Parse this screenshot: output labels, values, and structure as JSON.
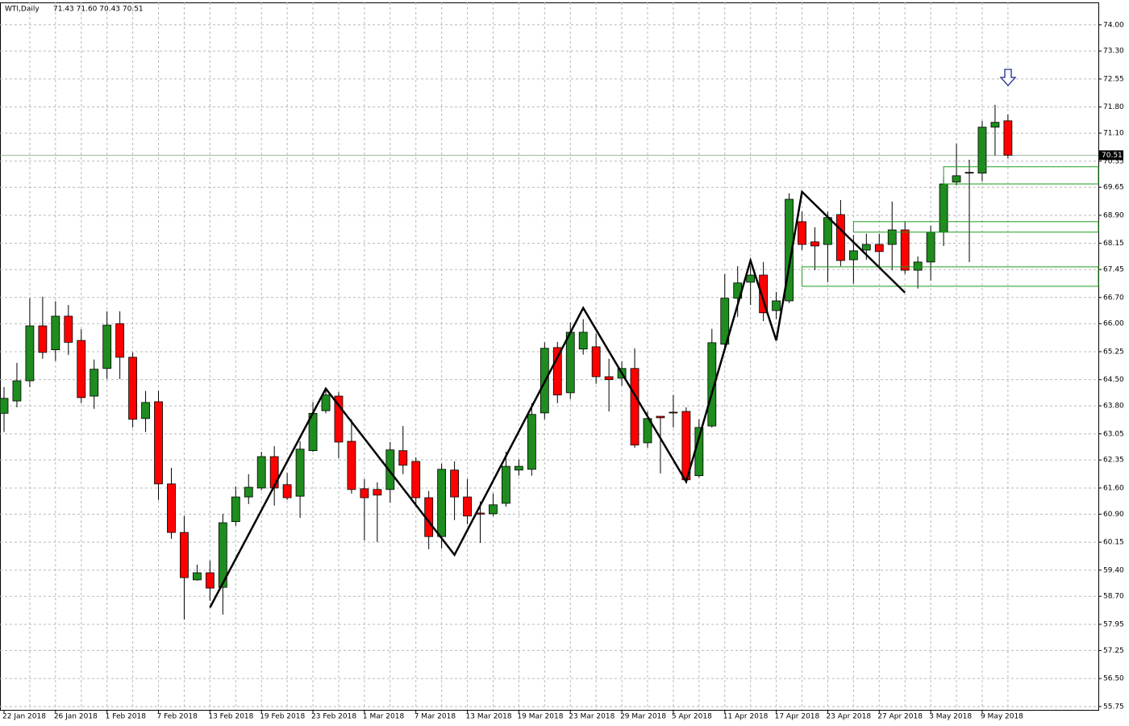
{
  "chart_data": {
    "type": "candlestick",
    "title": "WTI,Daily",
    "ohlc_label": "71.43 71.60 70.43 70.51",
    "categories": [
      "22 Jan 2018",
      null,
      null,
      null,
      "26 Jan 2018",
      null,
      null,
      null,
      "1 Feb 2018",
      null,
      null,
      null,
      "7 Feb 2018",
      null,
      null,
      null,
      "13 Feb 2018",
      null,
      null,
      null,
      "19 Feb 2018",
      null,
      null,
      null,
      "23 Feb 2018",
      null,
      null,
      null,
      "1 Mar 2018",
      null,
      null,
      null,
      "7 Mar 2018",
      null,
      null,
      null,
      "13 Mar 2018",
      null,
      null,
      null,
      "19 Mar 2018",
      null,
      null,
      null,
      "23 Mar 2018",
      null,
      null,
      null,
      "29 Mar 2018",
      null,
      null,
      null,
      "5 Apr 2018",
      null,
      null,
      null,
      "11 Apr 2018",
      null,
      null,
      null,
      "17 Apr 2018",
      null,
      null,
      null,
      "23 Apr 2018",
      null,
      null,
      null,
      "27 Apr 2018",
      null,
      null,
      null,
      "3 May 2018",
      null,
      null,
      null,
      "9 May 2018",
      null,
      null
    ],
    "open": [
      63.6,
      63.93,
      64.47,
      65.94,
      65.3,
      66.2,
      65.55,
      64.06,
      64.8,
      66.0,
      65.1,
      63.46,
      63.91,
      61.71,
      60.41,
      59.14,
      59.33,
      58.94,
      60.7,
      61.36,
      61.6,
      62.44,
      61.69,
      61.38,
      62.6,
      63.67,
      64.06,
      62.85,
      61.58,
      61.56,
      61.56,
      62.6,
      62.31,
      61.34,
      60.3,
      62.08,
      61.36,
      60.93,
      60.91,
      61.19,
      62.08,
      62.1,
      63.61,
      65.36,
      64.15,
      65.32,
      65.38,
      64.58,
      64.54,
      64.8,
      62.81,
      63.52,
      63.63,
      63.65,
      61.93,
      63.26,
      65.45,
      66.68,
      67.11,
      67.3,
      66.35,
      66.61,
      68.73,
      68.19,
      68.12,
      68.92,
      67.71,
      67.97,
      68.12,
      68.12,
      68.51,
      67.43,
      67.65,
      68.45,
      69.79,
      70.05,
      70.03,
      71.26,
      71.43
    ],
    "high": [
      64.3,
      64.95,
      66.68,
      66.72,
      66.6,
      66.5,
      65.85,
      65.04,
      66.33,
      66.33,
      65.23,
      64.2,
      64.2,
      62.14,
      60.85,
      59.55,
      59.66,
      60.91,
      61.64,
      61.97,
      62.57,
      62.72,
      62.0,
      62.85,
      63.9,
      64.28,
      64.17,
      63.44,
      61.84,
      61.75,
      62.83,
      63.26,
      62.42,
      61.52,
      62.25,
      62.31,
      61.84,
      61.24,
      61.45,
      62.57,
      62.36,
      63.87,
      65.5,
      65.51,
      66.03,
      66.12,
      65.73,
      65.06,
      64.99,
      65.34,
      63.65,
      63.52,
      64.09,
      63.76,
      63.44,
      65.86,
      67.33,
      67.54,
      67.54,
      67.65,
      66.85,
      69.49,
      69.0,
      68.58,
      69.0,
      69.31,
      68.37,
      68.41,
      68.41,
      69.27,
      68.73,
      67.8,
      68.62,
      69.92,
      70.82,
      70.39,
      71.43,
      71.86,
      71.6
    ],
    "low": [
      63.1,
      63.76,
      64.3,
      65.06,
      65.0,
      65.16,
      63.87,
      63.72,
      64.52,
      64.52,
      63.22,
      63.1,
      61.28,
      60.24,
      58.08,
      59.12,
      58.58,
      58.21,
      60.59,
      61.17,
      61.54,
      61.13,
      61.28,
      60.8,
      62.57,
      63.6,
      62.4,
      61.45,
      60.2,
      60.15,
      61.21,
      61.97,
      61.1,
      59.96,
      59.98,
      60.74,
      60.63,
      60.13,
      60.85,
      61.1,
      61.93,
      61.93,
      63.44,
      63.87,
      63.98,
      65.17,
      64.39,
      63.65,
      64.34,
      62.68,
      62.68,
      61.99,
      63.22,
      61.75,
      61.88,
      63.22,
      65.38,
      66.18,
      66.5,
      66.07,
      66.12,
      66.55,
      67.97,
      67.43,
      67.11,
      67.54,
      67.07,
      67.71,
      67.54,
      67.43,
      67.33,
      66.94,
      67.15,
      68.08,
      69.7,
      67.65,
      69.81,
      70.5,
      70.43
    ],
    "close": [
      64.0,
      64.47,
      65.94,
      65.23,
      66.2,
      65.5,
      64.02,
      64.78,
      65.96,
      65.1,
      63.44,
      63.89,
      61.71,
      60.41,
      59.2,
      59.33,
      58.92,
      60.67,
      61.36,
      61.62,
      62.44,
      61.6,
      61.34,
      62.64,
      63.6,
      64.09,
      62.83,
      61.56,
      61.34,
      61.41,
      62.62,
      62.21,
      61.34,
      60.3,
      62.1,
      61.36,
      60.85,
      60.9,
      61.15,
      62.18,
      62.18,
      63.57,
      65.34,
      64.09,
      65.77,
      65.77,
      64.58,
      64.5,
      64.8,
      62.75,
      63.46,
      63.48,
      63.61,
      61.82,
      63.22,
      65.49,
      66.68,
      67.09,
      67.3,
      66.29,
      66.61,
      69.33,
      68.12,
      68.08,
      68.84,
      67.69,
      67.95,
      68.12,
      67.93,
      68.51,
      67.43,
      67.65,
      68.45,
      69.74,
      69.96,
      70.05,
      71.26,
      71.39,
      70.51
    ],
    "up_color": "#1e8c1e",
    "down_color": "#ff0000",
    "ylim": [
      55.66,
      74.6
    ],
    "yticks": [
      {
        "value": 74,
        "label": "74.00"
      },
      {
        "value": 73.3,
        "label": "73.30"
      },
      72.55,
      {
        "value": 71.8,
        "label": "71.80"
      },
      {
        "value": 71.1,
        "label": "71.10"
      },
      70.35,
      69.65,
      {
        "value": 68.9,
        "label": "68.90"
      },
      68.15,
      67.45,
      {
        "value": 66.7,
        "label": "66.70"
      },
      {
        "value": 66,
        "label": "66.00"
      },
      65.25,
      {
        "value": 64.5,
        "label": "64.50"
      },
      {
        "value": 63.8,
        "label": "63.80"
      },
      63.05,
      62.35,
      {
        "value": 61.6,
        "label": "61.60"
      },
      {
        "value": 60.9,
        "label": "60.90"
      },
      60.15,
      {
        "value": 59.4,
        "label": "59.40"
      },
      {
        "value": 58.7,
        "label": "58.70"
      },
      57.95,
      57.25,
      {
        "value": 56.5,
        "label": "56.50"
      },
      55.75
    ],
    "grid": true,
    "last_price": {
      "value": 70.51,
      "label": "70.51"
    },
    "zigzag": {
      "x": [
        16,
        25,
        35,
        45,
        53,
        58,
        60,
        62,
        70
      ],
      "values": [
        58.4,
        64.26,
        59.81,
        66.42,
        61.77,
        67.69,
        65.55,
        69.53,
        66.83
      ]
    },
    "zones": [
      {
        "from": 73,
        "top": 70.2,
        "bottom": 69.74
      },
      {
        "from": 66,
        "top": 68.73,
        "bottom": 68.45
      },
      {
        "from": 62,
        "top": 67.52,
        "bottom": 67.0
      }
    ]
  }
}
